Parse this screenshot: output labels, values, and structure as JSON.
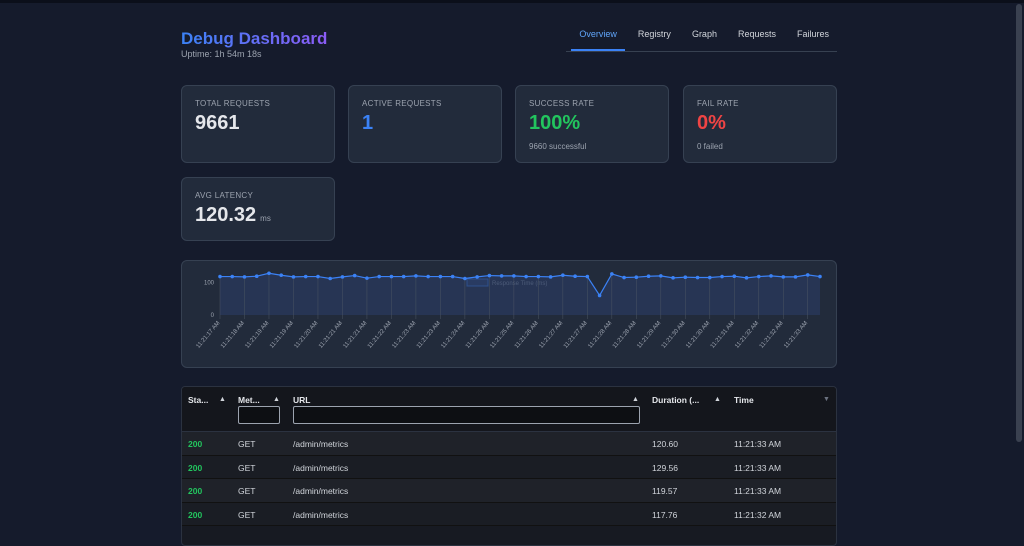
{
  "header": {
    "title": "Debug Dashboard",
    "uptime": "Uptime: 1h 54m 18s"
  },
  "tabs": [
    {
      "label": "Overview",
      "active": true
    },
    {
      "label": "Registry"
    },
    {
      "label": "Graph"
    },
    {
      "label": "Requests"
    },
    {
      "label": "Failures"
    }
  ],
  "stats": {
    "total": {
      "label": "TOTAL REQUESTS",
      "value": "9661"
    },
    "active": {
      "label": "ACTIVE REQUESTS",
      "value": "1"
    },
    "success": {
      "label": "SUCCESS RATE",
      "value": "100%",
      "sub": "9660 successful"
    },
    "fail": {
      "label": "FAIL RATE",
      "value": "0%",
      "sub": "0 failed"
    },
    "latency": {
      "label": "AVG LATENCY",
      "value": "120.32",
      "unit": "ms"
    }
  },
  "colors": {
    "accent": "#3b82f6",
    "success": "#22c55e",
    "fail": "#ef4444",
    "active": "#3b82f6"
  },
  "chart_data": {
    "type": "line",
    "series": [
      {
        "name": "Response Time (ms)",
        "values": [
          118,
          118,
          117,
          119,
          128,
          122,
          117,
          118,
          118,
          112,
          117,
          121,
          113,
          118,
          118,
          118,
          120,
          118,
          118,
          118,
          112,
          117,
          121,
          120,
          120,
          118,
          118,
          117,
          122,
          119,
          118,
          60,
          126,
          115,
          116,
          119,
          120,
          114,
          116,
          115,
          115,
          118,
          119,
          114,
          118,
          120,
          117,
          117,
          123,
          118
        ]
      }
    ],
    "yticks": [
      0,
      100
    ],
    "ylim": [
      0,
      135
    ],
    "xtick_labels": [
      "11:21:17 AM",
      "11:21:18 AM",
      "11:21:19 AM",
      "11:21:19 AM",
      "11:21:20 AM",
      "11:21:21 AM",
      "11:21:21 AM",
      "11:21:22 AM",
      "11:21:23 AM",
      "11:21:23 AM",
      "11:21:24 AM",
      "11:21:25 AM",
      "11:21:25 AM",
      "11:21:26 AM",
      "11:21:27 AM",
      "11:21:27 AM",
      "11:21:28 AM",
      "11:21:28 AM",
      "11:21:29 AM",
      "11:21:30 AM",
      "11:21:30 AM",
      "11:21:31 AM",
      "11:21:32 AM",
      "11:21:32 AM",
      "11:21:33 AM"
    ],
    "legend": "top",
    "grid": true
  },
  "table": {
    "columns": [
      "Sta...",
      "Met...",
      "URL",
      "Duration (...",
      "Time"
    ],
    "rows": [
      [
        "200",
        "GET",
        "/admin/metrics",
        "120.60",
        "11:21:33 AM"
      ],
      [
        "200",
        "GET",
        "/admin/metrics",
        "129.56",
        "11:21:33 AM"
      ],
      [
        "200",
        "GET",
        "/admin/metrics",
        "119.57",
        "11:21:33 AM"
      ],
      [
        "200",
        "GET",
        "/admin/metrics",
        "117.76",
        "11:21:32 AM"
      ]
    ]
  }
}
